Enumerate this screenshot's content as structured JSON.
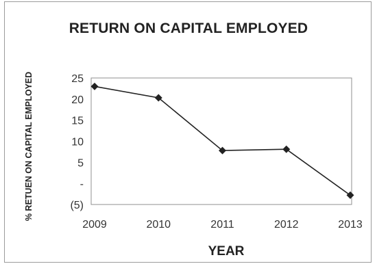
{
  "chart_data": {
    "type": "line",
    "title": "RETURN ON CAPITAL EMPLOYED",
    "xlabel": "YEAR",
    "ylabel": "% RETUEN ON CAPITAL EMPLOYED",
    "categories": [
      "2009",
      "2010",
      "2011",
      "2012",
      "2013"
    ],
    "series": [
      {
        "values": [
          23,
          20.3,
          7.8,
          8.1,
          -2.8
        ]
      }
    ],
    "ylim": [
      -5,
      25
    ],
    "yticks": [
      25,
      20,
      15,
      10,
      5,
      0,
      -5
    ],
    "ytick_labels": [
      "25",
      "20",
      "15",
      "10",
      "5",
      "-",
      "(5)"
    ],
    "grid": false,
    "legend": "none",
    "line_color": "#222222",
    "marker": "diamond"
  }
}
